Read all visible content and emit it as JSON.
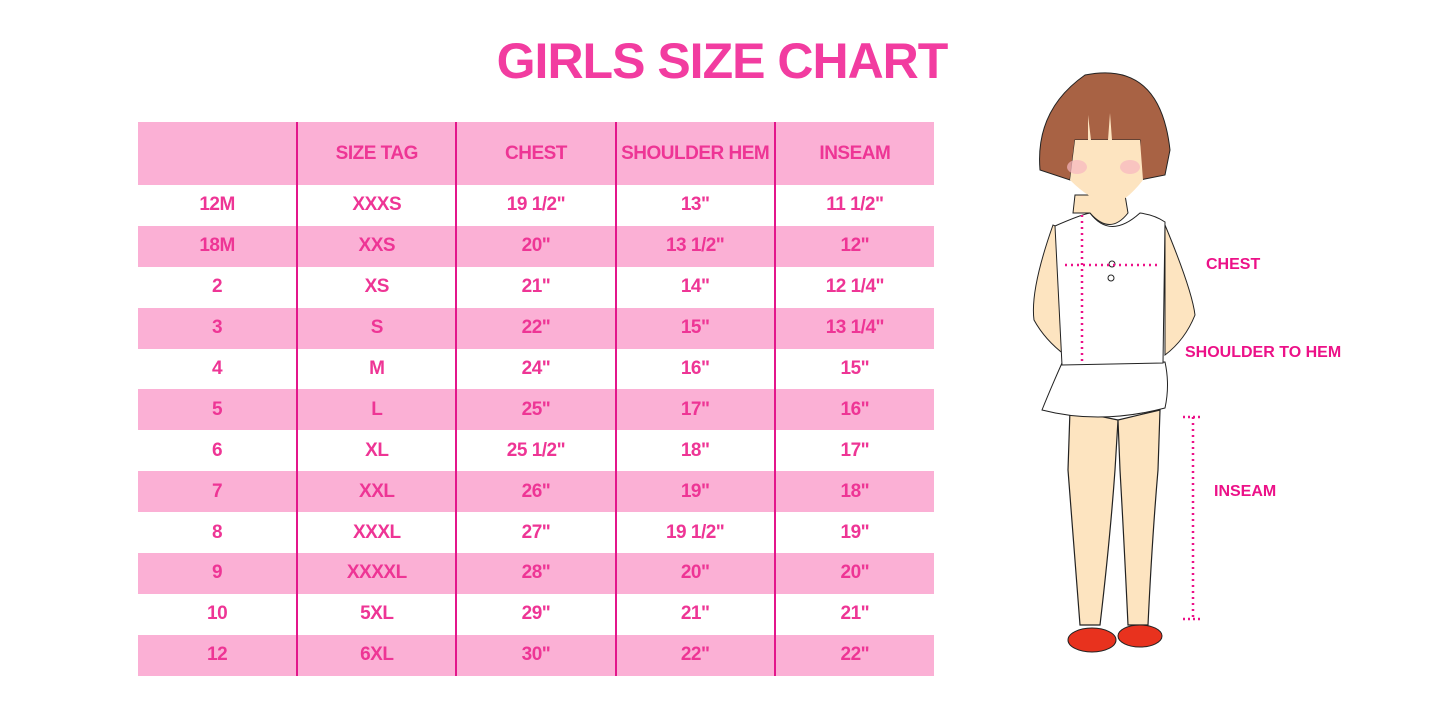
{
  "title": "GIRLS SIZE CHART",
  "table": {
    "headers": [
      "",
      "SIZE TAG",
      "CHEST",
      "SHOULDER HEM",
      "INSEAM"
    ],
    "rows": [
      [
        "12M",
        "XXXS",
        "19 1/2\"",
        "13\"",
        "11 1/2\""
      ],
      [
        "18M",
        "XXS",
        "20\"",
        "13 1/2\"",
        "12\""
      ],
      [
        "2",
        "XS",
        "21\"",
        "14\"",
        "12 1/4\""
      ],
      [
        "3",
        "S",
        "22\"",
        "15\"",
        "13 1/4\""
      ],
      [
        "4",
        "M",
        "24\"",
        "16\"",
        "15\""
      ],
      [
        "5",
        "L",
        "25\"",
        "17\"",
        "16\""
      ],
      [
        "6",
        "XL",
        "25 1/2\"",
        "18\"",
        "17\""
      ],
      [
        "7",
        "XXL",
        "26\"",
        "19\"",
        "18\""
      ],
      [
        "8",
        "XXXL",
        "27\"",
        "19 1/2\"",
        "19\""
      ],
      [
        "9",
        "XXXXL",
        "28\"",
        "20\"",
        "20\""
      ],
      [
        "10",
        "5XL",
        "29\"",
        "21\"",
        "21\""
      ],
      [
        "12",
        "6XL",
        "30\"",
        "22\"",
        "22\""
      ]
    ]
  },
  "figure": {
    "labels": {
      "chest": "CHEST",
      "shoulder_to_hem": "SHOULDER TO HEM",
      "inseam": "INSEAM"
    }
  },
  "colors": {
    "title": "#f23ca0",
    "row_pink": "#fbb0d5",
    "divider": "#e3168b",
    "measure": "#ec1188"
  }
}
